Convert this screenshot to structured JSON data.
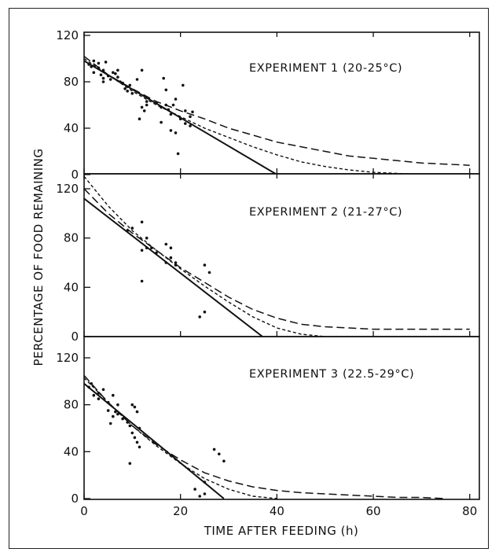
{
  "chart_data": {
    "type": "scatter",
    "xlabel": "TIME AFTER FEEDING (h)",
    "ylabel": "PERCENTAGE OF FOOD REMAINING",
    "xlim": [
      0,
      82
    ],
    "x_ticks": [
      0,
      20,
      40,
      60,
      80
    ],
    "panels": [
      {
        "title": "EXPERIMENT 1 (20-25°C)",
        "ylim": [
          0,
          120
        ],
        "y_ticks": [
          0,
          40,
          80,
          120
        ],
        "points": [
          [
            1,
            95
          ],
          [
            1.5,
            93
          ],
          [
            2,
            98
          ],
          [
            2,
            88
          ],
          [
            3,
            92
          ],
          [
            3,
            96
          ],
          [
            3.5,
            86
          ],
          [
            4,
            90
          ],
          [
            4,
            83
          ],
          [
            4,
            80
          ],
          [
            4.5,
            97
          ],
          [
            5,
            85
          ],
          [
            5.5,
            82
          ],
          [
            6,
            88
          ],
          [
            6.5,
            87
          ],
          [
            7,
            84
          ],
          [
            7,
            90
          ],
          [
            7.5,
            80
          ],
          [
            8,
            79
          ],
          [
            8.5,
            74
          ],
          [
            9,
            72
          ],
          [
            9.5,
            77
          ],
          [
            10,
            70
          ],
          [
            11,
            82
          ],
          [
            11.5,
            48
          ],
          [
            12,
            58
          ],
          [
            12,
            90
          ],
          [
            12.5,
            55
          ],
          [
            13,
            63
          ],
          [
            13,
            60
          ],
          [
            15,
            62
          ],
          [
            16,
            58
          ],
          [
            16,
            45
          ],
          [
            16.5,
            83
          ],
          [
            17,
            60
          ],
          [
            17,
            73
          ],
          [
            17.5,
            56
          ],
          [
            18,
            52
          ],
          [
            18,
            38
          ],
          [
            18.5,
            60
          ],
          [
            19,
            65
          ],
          [
            19,
            36
          ],
          [
            19.5,
            18
          ],
          [
            20,
            48
          ],
          [
            20.5,
            77
          ],
          [
            21,
            55
          ],
          [
            21,
            44
          ],
          [
            22,
            50
          ],
          [
            22,
            42
          ],
          [
            22.5,
            54
          ]
        ],
        "lines": [
          {
            "style": "solid",
            "x": [
              0,
              40
            ],
            "y": [
              98,
              0
            ]
          },
          {
            "style": "long-dash",
            "x": [
              0,
              5,
              10,
              15,
              20,
              25,
              30,
              35,
              40,
              45,
              50,
              55,
              60,
              65,
              70,
              75,
              80
            ],
            "y": [
              102,
              86,
              74,
              63,
              55,
              48,
              40,
              34,
              28,
              24,
              20,
              16,
              14,
              12,
              10,
              9,
              8
            ]
          },
          {
            "style": "short-dash",
            "x": [
              0,
              5,
              10,
              15,
              20,
              25,
              30,
              35,
              40,
              45,
              50,
              55,
              60,
              65,
              70,
              75,
              80
            ],
            "y": [
              100,
              86,
              72,
              60,
              50,
              40,
              32,
              24,
              17,
              11,
              7,
              4,
              2,
              1,
              0,
              0,
              0
            ]
          }
        ]
      },
      {
        "title": "EXPERIMENT 2 (21-27°C)",
        "ylim": [
          0,
          120
        ],
        "y_ticks": [
          0,
          40,
          80,
          120
        ],
        "points": [
          [
            9,
            86
          ],
          [
            10,
            88
          ],
          [
            12,
            70
          ],
          [
            12,
            93
          ],
          [
            12,
            45
          ],
          [
            13,
            72
          ],
          [
            13,
            80
          ],
          [
            14,
            72
          ],
          [
            15,
            68
          ],
          [
            17,
            60
          ],
          [
            17,
            75
          ],
          [
            18,
            64
          ],
          [
            18,
            72
          ],
          [
            19,
            60
          ],
          [
            19,
            58
          ],
          [
            24,
            16
          ],
          [
            25,
            20
          ],
          [
            25,
            58
          ],
          [
            26,
            52
          ]
        ],
        "lines": [
          {
            "style": "solid",
            "x": [
              0,
              37
            ],
            "y": [
              112,
              0
            ]
          },
          {
            "style": "long-dash",
            "x": [
              0,
              5,
              10,
              15,
              20,
              25,
              30,
              35,
              40,
              45,
              50,
              55,
              60,
              65,
              70,
              75,
              80
            ],
            "y": [
              120,
              100,
              84,
              70,
              56,
              44,
              32,
              22,
              15,
              10,
              8,
              7,
              6,
              6,
              6,
              6,
              6
            ]
          },
          {
            "style": "short-dash",
            "x": [
              0,
              5,
              10,
              15,
              20,
              25,
              30,
              35,
              40,
              45,
              50
            ],
            "y": [
              130,
              106,
              86,
              70,
              55,
              41,
              28,
              16,
              7,
              2,
              0
            ]
          }
        ]
      },
      {
        "title": "EXPERIMENT 3 (22.5-29°C)",
        "ylim": [
          0,
          120
        ],
        "y_ticks": [
          0,
          40,
          80,
          120
        ],
        "points": [
          [
            1,
            95
          ],
          [
            1.5,
            98
          ],
          [
            2,
            88
          ],
          [
            3,
            90
          ],
          [
            3,
            85
          ],
          [
            4,
            93
          ],
          [
            5,
            82
          ],
          [
            5,
            75
          ],
          [
            5.5,
            64
          ],
          [
            6,
            70
          ],
          [
            6,
            88
          ],
          [
            6.5,
            74
          ],
          [
            7,
            80
          ],
          [
            7,
            72
          ],
          [
            8,
            68
          ],
          [
            9,
            65
          ],
          [
            9.5,
            62
          ],
          [
            9.5,
            30
          ],
          [
            10,
            80
          ],
          [
            10,
            56
          ],
          [
            10.5,
            78
          ],
          [
            10.5,
            52
          ],
          [
            11,
            74
          ],
          [
            11,
            48
          ],
          [
            11.5,
            60
          ],
          [
            11.5,
            44
          ],
          [
            23,
            8
          ],
          [
            24,
            2
          ],
          [
            25,
            4
          ],
          [
            25,
            14
          ],
          [
            27,
            42
          ],
          [
            28,
            38
          ],
          [
            29,
            32
          ]
        ],
        "lines": [
          {
            "style": "solid",
            "x": [
              0,
              29
            ],
            "y": [
              98,
              0
            ]
          },
          {
            "style": "long-dash",
            "x": [
              0,
              5,
              10,
              15,
              20,
              25,
              30,
              35,
              40,
              45,
              50,
              55,
              60,
              65,
              70,
              75
            ],
            "y": [
              105,
              82,
              62,
              46,
              33,
              22,
              15,
              10,
              7,
              5,
              4,
              3,
              2,
              1,
              1,
              0
            ]
          },
          {
            "style": "short-dash",
            "x": [
              0,
              5,
              10,
              15,
              20,
              25,
              30,
              35,
              40
            ],
            "y": [
              103,
              82,
              62,
              45,
              30,
              17,
              8,
              2,
              0
            ]
          }
        ]
      }
    ]
  }
}
